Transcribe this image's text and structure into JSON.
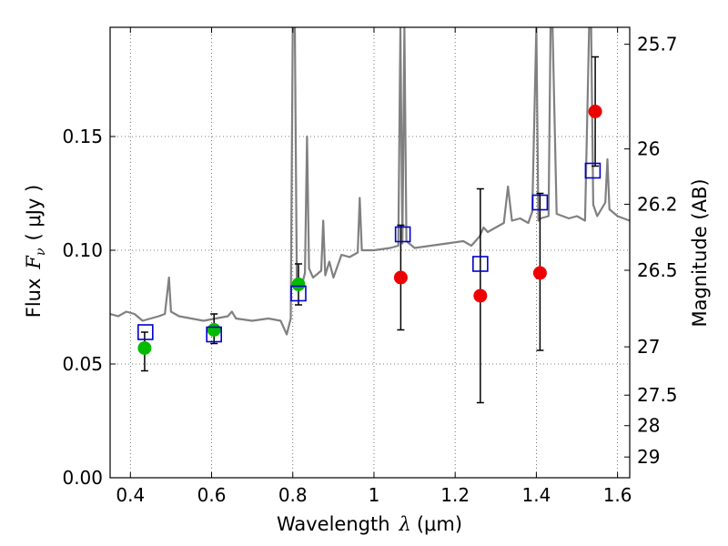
{
  "chart_data": {
    "type": "scatter",
    "xlabel_prefix": "Wavelength",
    "xlabel_symbol": "λ",
    "xlabel_unit": "(μm)",
    "ylabel_prefix": "Flux",
    "ylabel_symbol": "F",
    "ylabel_subscript": "ν",
    "ylabel_unit": "( μJy )",
    "y2label": "Magnitude (AB)",
    "xlim": [
      0.35,
      1.63
    ],
    "ylim": [
      0.0,
      0.198
    ],
    "grid": true,
    "x_ticks": [
      {
        "value": 0.4,
        "label": "0.4"
      },
      {
        "value": 0.6,
        "label": "0.6"
      },
      {
        "value": 0.8,
        "label": "0.8"
      },
      {
        "value": 1.0,
        "label": "1"
      },
      {
        "value": 1.2,
        "label": "1.2"
      },
      {
        "value": 1.4,
        "label": "1.4"
      },
      {
        "value": 1.6,
        "label": "1.6"
      }
    ],
    "y_ticks": [
      {
        "value": 0.0,
        "label": "0.00"
      },
      {
        "value": 0.05,
        "label": "0.05"
      },
      {
        "value": 0.1,
        "label": "0.10"
      },
      {
        "value": 0.15,
        "label": "0.15"
      }
    ],
    "y2_ticks": [
      {
        "value": 25.7,
        "label": "25.7"
      },
      {
        "value": 26.0,
        "label": "26"
      },
      {
        "value": 26.2,
        "label": "26.2"
      },
      {
        "value": 26.5,
        "label": "26.5"
      },
      {
        "value": 27.0,
        "label": "27"
      },
      {
        "value": 27.5,
        "label": "27.5"
      },
      {
        "value": 28.0,
        "label": "28"
      },
      {
        "value": 29.0,
        "label": "29"
      }
    ],
    "colors": {
      "spectrum": "#808080",
      "model_box": "#0000cc",
      "observed_green": "#00bb00",
      "observed_red": "#ee0000",
      "error_bar": "#000000",
      "grid": "#555555"
    },
    "spectrum": [
      [
        0.35,
        0.072
      ],
      [
        0.37,
        0.071
      ],
      [
        0.39,
        0.073
      ],
      [
        0.41,
        0.072
      ],
      [
        0.43,
        0.069
      ],
      [
        0.45,
        0.07
      ],
      [
        0.47,
        0.071
      ],
      [
        0.485,
        0.072
      ],
      [
        0.495,
        0.088
      ],
      [
        0.5,
        0.073
      ],
      [
        0.52,
        0.071
      ],
      [
        0.55,
        0.07
      ],
      [
        0.58,
        0.069
      ],
      [
        0.61,
        0.07
      ],
      [
        0.64,
        0.071
      ],
      [
        0.65,
        0.073
      ],
      [
        0.66,
        0.07
      ],
      [
        0.7,
        0.069
      ],
      [
        0.74,
        0.07
      ],
      [
        0.77,
        0.069
      ],
      [
        0.785,
        0.063
      ],
      [
        0.795,
        0.07
      ],
      [
        0.8,
        0.198
      ],
      [
        0.805,
        0.198
      ],
      [
        0.81,
        0.085
      ],
      [
        0.82,
        0.083
      ],
      [
        0.83,
        0.09
      ],
      [
        0.835,
        0.15
      ],
      [
        0.84,
        0.092
      ],
      [
        0.85,
        0.088
      ],
      [
        0.87,
        0.091
      ],
      [
        0.875,
        0.113
      ],
      [
        0.88,
        0.089
      ],
      [
        0.89,
        0.095
      ],
      [
        0.9,
        0.088
      ],
      [
        0.92,
        0.098
      ],
      [
        0.94,
        0.097
      ],
      [
        0.96,
        0.099
      ],
      [
        0.965,
        0.123
      ],
      [
        0.97,
        0.1
      ],
      [
        1.0,
        0.1
      ],
      [
        1.04,
        0.101
      ],
      [
        1.06,
        0.102
      ],
      [
        1.065,
        0.198
      ],
      [
        1.07,
        0.103
      ],
      [
        1.075,
        0.198
      ],
      [
        1.08,
        0.104
      ],
      [
        1.1,
        0.101
      ],
      [
        1.14,
        0.102
      ],
      [
        1.18,
        0.103
      ],
      [
        1.22,
        0.104
      ],
      [
        1.24,
        0.102
      ],
      [
        1.26,
        0.106
      ],
      [
        1.27,
        0.11
      ],
      [
        1.28,
        0.108
      ],
      [
        1.3,
        0.11
      ],
      [
        1.32,
        0.112
      ],
      [
        1.33,
        0.128
      ],
      [
        1.34,
        0.113
      ],
      [
        1.36,
        0.114
      ],
      [
        1.38,
        0.112
      ],
      [
        1.39,
        0.117
      ],
      [
        1.4,
        0.198
      ],
      [
        1.405,
        0.113
      ],
      [
        1.41,
        0.114
      ],
      [
        1.43,
        0.115
      ],
      [
        1.435,
        0.198
      ],
      [
        1.44,
        0.198
      ],
      [
        1.45,
        0.116
      ],
      [
        1.48,
        0.114
      ],
      [
        1.5,
        0.115
      ],
      [
        1.52,
        0.113
      ],
      [
        1.53,
        0.198
      ],
      [
        1.535,
        0.198
      ],
      [
        1.54,
        0.12
      ],
      [
        1.55,
        0.115
      ],
      [
        1.57,
        0.121
      ],
      [
        1.575,
        0.14
      ],
      [
        1.58,
        0.118
      ],
      [
        1.6,
        0.115
      ],
      [
        1.63,
        0.113
      ]
    ],
    "model_points": [
      {
        "x": 0.437,
        "y": 0.064
      },
      {
        "x": 0.606,
        "y": 0.063
      },
      {
        "x": 0.814,
        "y": 0.081
      },
      {
        "x": 1.071,
        "y": 0.107
      },
      {
        "x": 1.262,
        "y": 0.094
      },
      {
        "x": 1.409,
        "y": 0.121
      },
      {
        "x": 1.539,
        "y": 0.135
      }
    ],
    "observed_points": [
      {
        "x": 0.435,
        "y": 0.057,
        "err_low": 0.047,
        "err_high": 0.064,
        "color": "green"
      },
      {
        "x": 0.606,
        "y": 0.065,
        "err_low": 0.059,
        "err_high": 0.072,
        "color": "green"
      },
      {
        "x": 0.814,
        "y": 0.085,
        "err_low": 0.076,
        "err_high": 0.094,
        "color": "green"
      },
      {
        "x": 1.066,
        "y": 0.088,
        "err_low": 0.065,
        "err_high": 0.111,
        "color": "red"
      },
      {
        "x": 1.262,
        "y": 0.08,
        "err_low": 0.033,
        "err_high": 0.127,
        "color": "red"
      },
      {
        "x": 1.409,
        "y": 0.09,
        "err_low": 0.056,
        "err_high": 0.125,
        "color": "red"
      },
      {
        "x": 1.545,
        "y": 0.161,
        "err_low": 0.137,
        "err_high": 0.185,
        "color": "red"
      }
    ]
  }
}
